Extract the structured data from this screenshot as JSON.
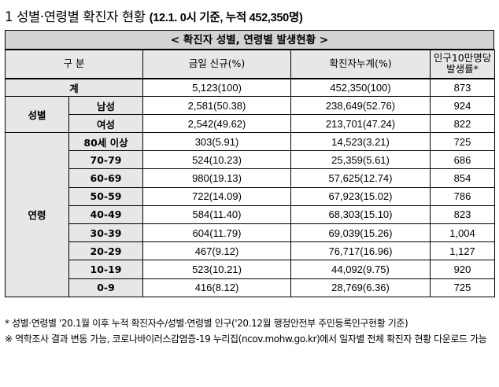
{
  "title": {
    "main": "1  성별·연령별 확진자 현황",
    "sub": "(12.1. 0시 기준, 누적 452,350명)"
  },
  "banner": "< 확진자 성별, 연령별 발생현황 >",
  "headers": {
    "category": "구 분",
    "new": "금일 신규(%)",
    "cumulative": "확진자누계(%)",
    "rate": "인구10만명당\n발생률*"
  },
  "total": {
    "label": "계",
    "new": "5,123(100)",
    "cumulative": "452,350(100)",
    "rate": "873"
  },
  "gender": {
    "group": "성별",
    "rows": [
      {
        "label": "남성",
        "new": "2,581(50.38)",
        "cumulative": "238,649(52.76)",
        "rate": "924"
      },
      {
        "label": "여성",
        "new": "2,542(49.62)",
        "cumulative": "213,701(47.24)",
        "rate": "822"
      }
    ]
  },
  "age": {
    "group": "연령",
    "rows": [
      {
        "label": "80세 이상",
        "new": "303(5.91)",
        "cumulative": "14,523(3.21)",
        "rate": "725"
      },
      {
        "label": "70-79",
        "new": "524(10.23)",
        "cumulative": "25,359(5.61)",
        "rate": "686"
      },
      {
        "label": "60-69",
        "new": "980(19.13)",
        "cumulative": "57,625(12.74)",
        "rate": "854"
      },
      {
        "label": "50-59",
        "new": "722(14.09)",
        "cumulative": "67,923(15.02)",
        "rate": "786"
      },
      {
        "label": "40-49",
        "new": "584(11.40)",
        "cumulative": "68,303(15.10)",
        "rate": "823"
      },
      {
        "label": "30-39",
        "new": "604(11.79)",
        "cumulative": "69,039(15.26)",
        "rate": "1,004"
      },
      {
        "label": "20-29",
        "new": "467(9.12)",
        "cumulative": "76,717(16.96)",
        "rate": "1,127"
      },
      {
        "label": "10-19",
        "new": "523(10.21)",
        "cumulative": "44,092(9.75)",
        "rate": "920"
      },
      {
        "label": "0-9",
        "new": "416(8.12)",
        "cumulative": "28,769(6.36)",
        "rate": "725"
      }
    ]
  },
  "notes": [
    "* 성별·연령별 '20.1월 이후 누적 확진자수/성별·연령별 인구('20.12월 행정안전부 주민등록인구현황 기준)",
    "※ 역학조사 결과 변동 가능, 코로나바이러스감염증-19 누리집(ncov.mohw.go.kr)에서 일자별 전체 확진자 현황 다운로드 가능"
  ]
}
